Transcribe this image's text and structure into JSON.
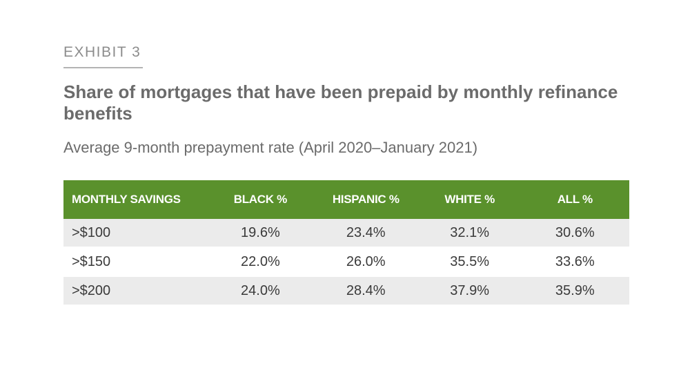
{
  "exhibit_label": "EXHIBIT 3",
  "title": "Share of mortgages that have been prepaid by monthly refinance benefits",
  "subtitle": "Average 9-month prepayment rate (April 2020–January 2021)",
  "colors": {
    "header_bg": "#5a912c",
    "row_shade": "#ebebeb",
    "text": "#6b6b6b"
  },
  "chart_data": {
    "type": "table",
    "title": "Share of mortgages that have been prepaid by monthly refinance benefits",
    "subtitle": "Average 9-month prepayment rate (April 2020–January 2021)",
    "columns": [
      "MONTHLY SAVINGS",
      "BLACK %",
      "HISPANIC %",
      "WHITE %",
      "ALL %"
    ],
    "rows": [
      [
        ">$100",
        "19.6%",
        "23.4%",
        "32.1%",
        "30.6%"
      ],
      [
        ">$150",
        "22.0%",
        "26.0%",
        "35.5%",
        "33.6%"
      ],
      [
        ">$200",
        "24.0%",
        "28.4%",
        "37.9%",
        "35.9%"
      ]
    ]
  }
}
